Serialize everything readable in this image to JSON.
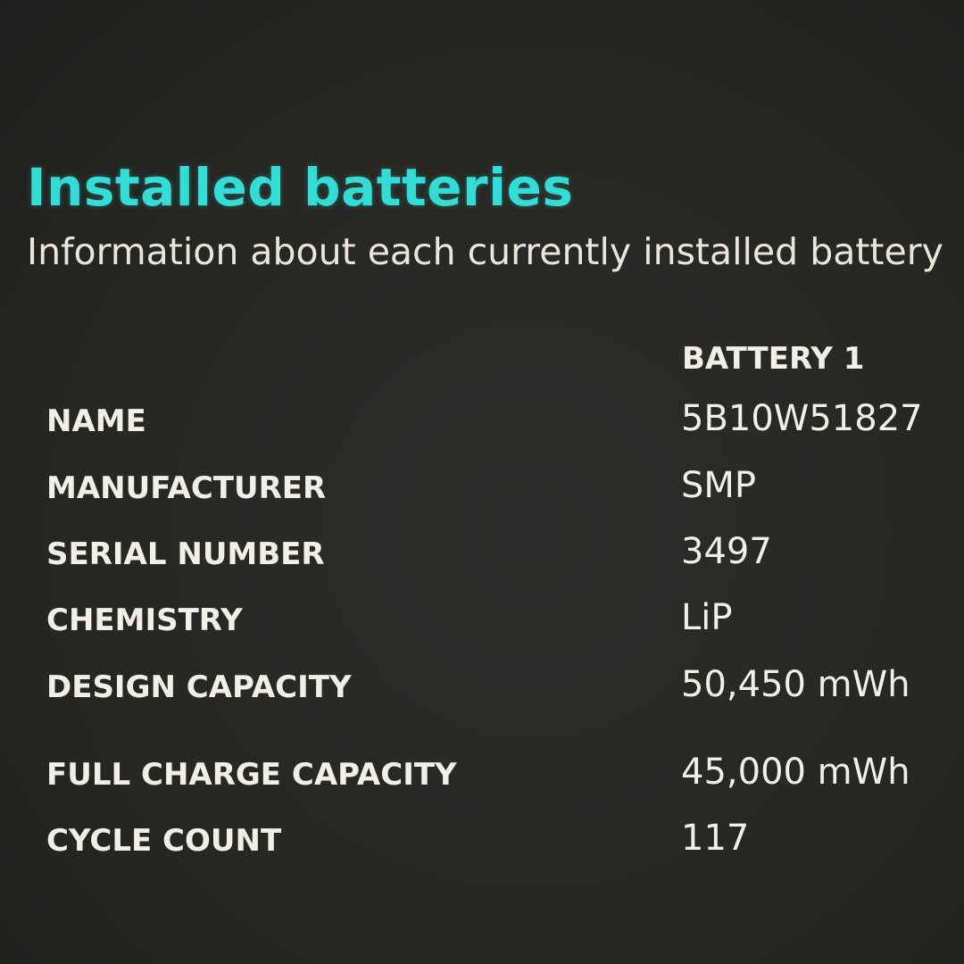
{
  "section": {
    "title": "Installed batteries",
    "subtitle": "Information about each currently installed battery"
  },
  "table": {
    "column_header": "BATTERY 1",
    "rows": [
      {
        "label": "NAME",
        "value": "5B10W51827"
      },
      {
        "label": "MANUFACTURER",
        "value": "SMP"
      },
      {
        "label": "SERIAL NUMBER",
        "value": "3497"
      },
      {
        "label": "CHEMISTRY",
        "value": "LiP"
      },
      {
        "label": "DESIGN CAPACITY",
        "value": "50,450 mWh"
      },
      {
        "label": "FULL CHARGE CAPACITY",
        "value": "45,000 mWh"
      },
      {
        "label": "CYCLE COUNT",
        "value": "117"
      }
    ]
  },
  "colors": {
    "title": "#33ddd6",
    "background": "#262723",
    "text": "#f2efe6"
  }
}
